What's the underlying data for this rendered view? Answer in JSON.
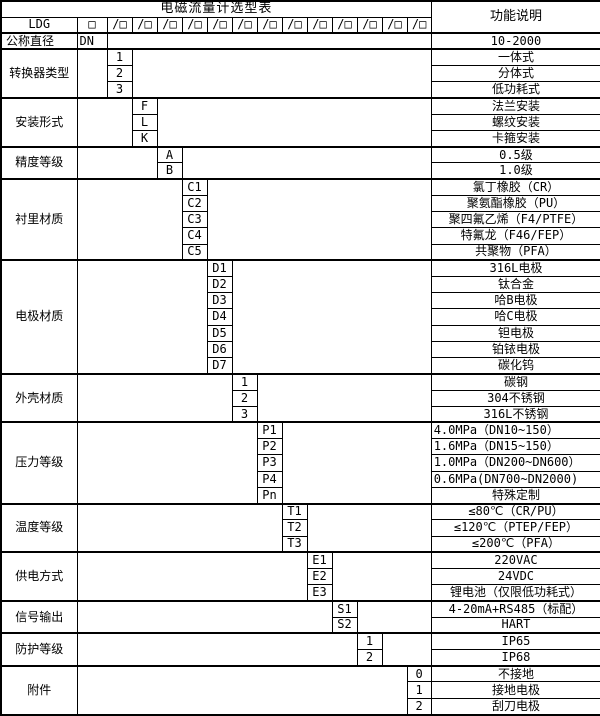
{
  "colors": {
    "background": "#ffffff",
    "border": "#000000",
    "text": "#000000"
  },
  "header": {
    "title": "电磁流量计选型表",
    "right_header": "功能说明"
  },
  "ldg_row": {
    "label": "LDG",
    "box": "□",
    "slots": [
      "/□",
      "/□",
      "/□",
      "/□",
      "/□",
      "/□",
      "/□",
      "/□",
      "/□",
      "/□",
      "/□",
      "/□",
      "/□"
    ]
  },
  "blocks": [
    {
      "label": "公称直径",
      "align": "left",
      "code_col": 1,
      "rows": [
        {
          "code": "DN",
          "code_align": "left",
          "desc": "10-2000"
        }
      ]
    },
    {
      "label": "转换器类型",
      "code_col": 2,
      "rows": [
        {
          "code": "1",
          "desc": "一体式"
        },
        {
          "code": "2",
          "desc": "分体式"
        },
        {
          "code": "3",
          "desc": "低功耗式"
        }
      ]
    },
    {
      "label": "安装形式",
      "code_col": 3,
      "rows": [
        {
          "code": "F",
          "desc": "法兰安装"
        },
        {
          "code": "L",
          "desc": "螺纹安装"
        },
        {
          "code": "K",
          "desc": "卡箍安装"
        }
      ]
    },
    {
      "label": "精度等级",
      "code_col": 4,
      "rows": [
        {
          "code": "A",
          "desc": "0.5级"
        },
        {
          "code": "B",
          "desc": "1.0级"
        }
      ]
    },
    {
      "label": "衬里材质",
      "code_col": 5,
      "rows": [
        {
          "code": "C1",
          "desc": "氯丁橡胶（CR）"
        },
        {
          "code": "C2",
          "desc": "聚氨酯橡胶（PU）"
        },
        {
          "code": "C3",
          "desc": "聚四氟乙烯（F4/PTFE）"
        },
        {
          "code": "C4",
          "desc": "特氟龙（F46/FEP）"
        },
        {
          "code": "C5",
          "desc": "共聚物（PFA）"
        }
      ]
    },
    {
      "label": "电极材质",
      "code_col": 6,
      "rows": [
        {
          "code": "D1",
          "desc": "316L电极"
        },
        {
          "code": "D2",
          "desc": "钛合金"
        },
        {
          "code": "D3",
          "desc": "哈B电极"
        },
        {
          "code": "D4",
          "desc": "哈C电极"
        },
        {
          "code": "D5",
          "desc": "钽电极"
        },
        {
          "code": "D6",
          "desc": "铂铱电极"
        },
        {
          "code": "D7",
          "desc": "碳化钨"
        }
      ]
    },
    {
      "label": "外壳材质",
      "code_col": 7,
      "rows": [
        {
          "code": "1",
          "desc": "碳钢"
        },
        {
          "code": "2",
          "desc": "304不锈钢"
        },
        {
          "code": "3",
          "desc": "316L不锈钢"
        }
      ]
    },
    {
      "label": "压力等级",
      "code_col": 8,
      "rows": [
        {
          "code": "P1",
          "desc": "4.0MPa（DN10~150）",
          "desc_align": "left"
        },
        {
          "code": "P2",
          "desc": "1.6MPa（DN15~150）",
          "desc_align": "left"
        },
        {
          "code": "P3",
          "desc": "1.0MPa（DN200~DN600）",
          "desc_align": "left"
        },
        {
          "code": "P4",
          "desc": "0.6MPa(DN700~DN2000)",
          "desc_align": "left"
        },
        {
          "code": "Pn",
          "desc": "特殊定制"
        }
      ]
    },
    {
      "label": "温度等级",
      "code_col": 9,
      "rows": [
        {
          "code": "T1",
          "desc": "≤80℃（CR/PU）"
        },
        {
          "code": "T2",
          "desc": "≤120℃（PTEP/FEP）"
        },
        {
          "code": "T3",
          "desc": "≤200℃（PFA）"
        }
      ]
    },
    {
      "label": "供电方式",
      "code_col": 10,
      "rows": [
        {
          "code": "E1",
          "desc": "220VAC"
        },
        {
          "code": "E2",
          "desc": "24VDC"
        },
        {
          "code": "E3",
          "desc": "锂电池（仅限低功耗式）"
        }
      ]
    },
    {
      "label": "信号输出",
      "code_col": 11,
      "rows": [
        {
          "code": "S1",
          "desc": "4-20mA+RS485（标配）"
        },
        {
          "code": "S2",
          "desc": "HART"
        }
      ]
    },
    {
      "label": "防护等级",
      "code_col": 12,
      "rows": [
        {
          "code": "1",
          "desc": "IP65"
        },
        {
          "code": "2",
          "desc": "IP68"
        }
      ]
    },
    {
      "label": "附件",
      "code_col": 14,
      "rows": [
        {
          "code": "0",
          "desc": "不接地"
        },
        {
          "code": "1",
          "desc": "接地电极"
        },
        {
          "code": "2",
          "desc": "刮刀电极"
        }
      ]
    }
  ]
}
